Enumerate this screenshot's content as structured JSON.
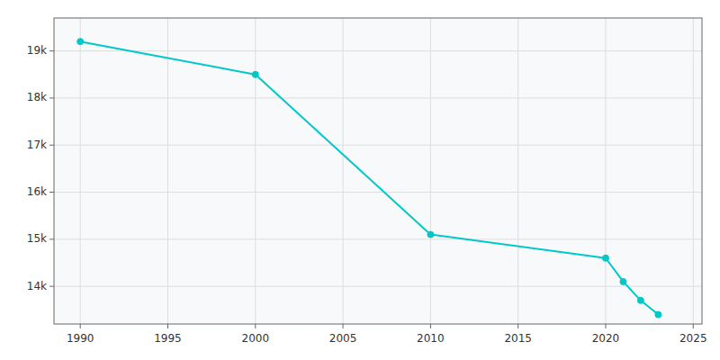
{
  "chart_data": {
    "type": "line",
    "x": [
      1990,
      2000,
      2010,
      2020,
      2021,
      2022,
      2023
    ],
    "values": [
      19200,
      18500,
      15100,
      14600,
      14100,
      13700,
      13400
    ],
    "color": "#00c8c8",
    "marker": "circle",
    "xlim": [
      1988.5,
      2025.5
    ],
    "ylim": [
      13200,
      19700
    ],
    "xticks": [
      1990,
      1995,
      2000,
      2005,
      2010,
      2015,
      2020,
      2025
    ],
    "yticks": [
      {
        "value": 14000,
        "label": "14k"
      },
      {
        "value": 15000,
        "label": "15k"
      },
      {
        "value": 16000,
        "label": "16k"
      },
      {
        "value": 17000,
        "label": "17k"
      },
      {
        "value": 18000,
        "label": "18k"
      },
      {
        "value": 19000,
        "label": "19k"
      }
    ],
    "grid": true
  }
}
